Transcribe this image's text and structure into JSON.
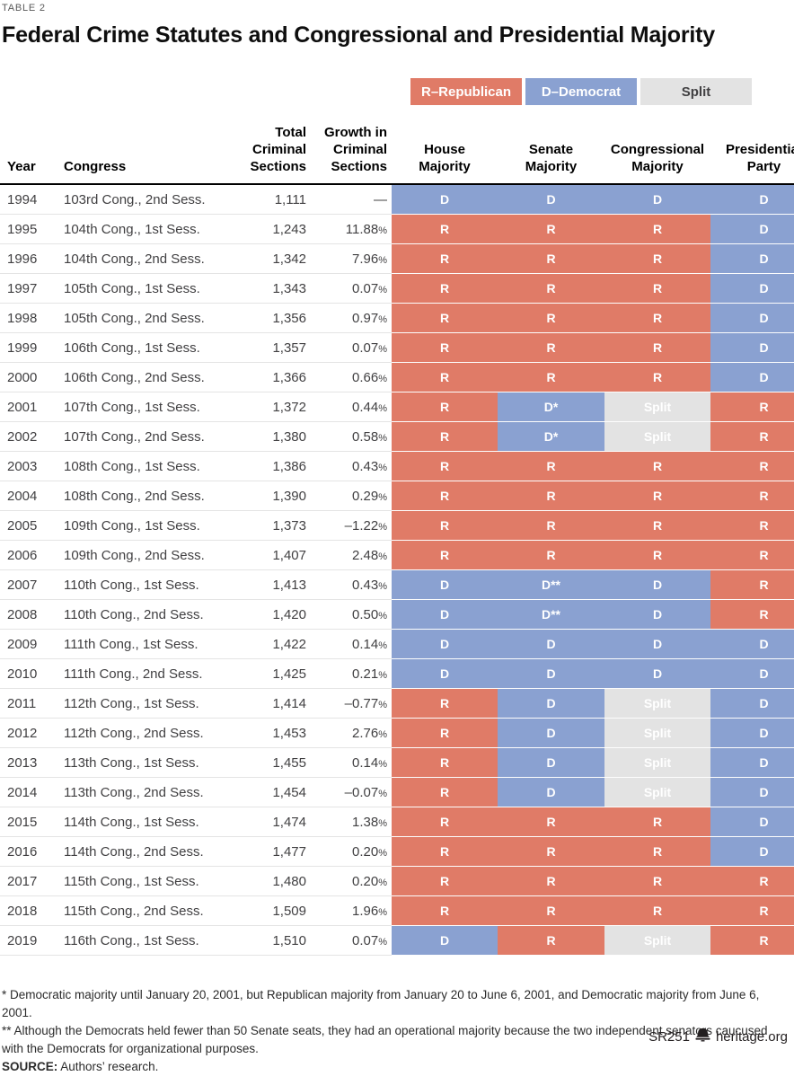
{
  "meta": {
    "table_label": "TABLE 2",
    "title": "Federal Crime Statutes and Congressional and Presidential Majority"
  },
  "legend": {
    "items": [
      {
        "label": "R–Republican",
        "color": "#E07B67",
        "text_color": "#FFFFFF"
      },
      {
        "label": "D–Democrat",
        "color": "#8AA1D1",
        "text_color": "#FFFFFF"
      },
      {
        "label": "Split",
        "color": "#E3E3E3",
        "text_color": "#414042"
      }
    ]
  },
  "table": {
    "columns": [
      {
        "key": "year",
        "label": "Year"
      },
      {
        "key": "congress",
        "label": "Congress"
      },
      {
        "key": "total",
        "label": "Total\nCriminal\nSections"
      },
      {
        "key": "growth",
        "label": "Growth in\nCriminal\nSections"
      },
      {
        "key": "house",
        "label": "House\nMajority"
      },
      {
        "key": "senate",
        "label": "Senate\nMajority"
      },
      {
        "key": "congressional",
        "label": "Congressional\nMajority"
      },
      {
        "key": "president",
        "label": "Presidential\nParty"
      }
    ],
    "rows": [
      {
        "year": "1994",
        "congress": "103rd Cong., 2nd Sess.",
        "total": "1,111",
        "growth": "—",
        "house": "D",
        "senate": "D",
        "congressional": "D",
        "president": "D"
      },
      {
        "year": "1995",
        "congress": "104th Cong., 1st Sess.",
        "total": "1,243",
        "growth": "11.88%",
        "house": "R",
        "senate": "R",
        "congressional": "R",
        "president": "D"
      },
      {
        "year": "1996",
        "congress": "104th Cong., 2nd Sess.",
        "total": "1,342",
        "growth": "7.96%",
        "house": "R",
        "senate": "R",
        "congressional": "R",
        "president": "D"
      },
      {
        "year": "1997",
        "congress": "105th Cong., 1st Sess.",
        "total": "1,343",
        "growth": "0.07%",
        "house": "R",
        "senate": "R",
        "congressional": "R",
        "president": "D"
      },
      {
        "year": "1998",
        "congress": "105th Cong., 2nd Sess.",
        "total": "1,356",
        "growth": "0.97%",
        "house": "R",
        "senate": "R",
        "congressional": "R",
        "president": "D"
      },
      {
        "year": "1999",
        "congress": "106th Cong., 1st Sess.",
        "total": "1,357",
        "growth": "0.07%",
        "house": "R",
        "senate": "R",
        "congressional": "R",
        "president": "D"
      },
      {
        "year": "2000",
        "congress": "106th Cong., 2nd Sess.",
        "total": "1,366",
        "growth": "0.66%",
        "house": "R",
        "senate": "R",
        "congressional": "R",
        "president": "D"
      },
      {
        "year": "2001",
        "congress": "107th Cong., 1st Sess.",
        "total": "1,372",
        "growth": "0.44%",
        "house": "R",
        "senate": "D*",
        "congressional": "Split",
        "president": "R"
      },
      {
        "year": "2002",
        "congress": "107th Cong., 2nd Sess.",
        "total": "1,380",
        "growth": "0.58%",
        "house": "R",
        "senate": "D*",
        "congressional": "Split",
        "president": "R"
      },
      {
        "year": "2003",
        "congress": "108th Cong., 1st Sess.",
        "total": "1,386",
        "growth": "0.43%",
        "house": "R",
        "senate": "R",
        "congressional": "R",
        "president": "R"
      },
      {
        "year": "2004",
        "congress": "108th Cong., 2nd Sess.",
        "total": "1,390",
        "growth": "0.29%",
        "house": "R",
        "senate": "R",
        "congressional": "R",
        "president": "R"
      },
      {
        "year": "2005",
        "congress": "109th Cong., 1st Sess.",
        "total": "1,373",
        "growth": "–1.22%",
        "house": "R",
        "senate": "R",
        "congressional": "R",
        "president": "R"
      },
      {
        "year": "2006",
        "congress": "109th Cong., 2nd Sess.",
        "total": "1,407",
        "growth": "2.48%",
        "house": "R",
        "senate": "R",
        "congressional": "R",
        "president": "R"
      },
      {
        "year": "2007",
        "congress": "110th Cong., 1st Sess.",
        "total": "1,413",
        "growth": "0.43%",
        "house": "D",
        "senate": "D**",
        "congressional": "D",
        "president": "R"
      },
      {
        "year": "2008",
        "congress": "110th Cong., 2nd Sess.",
        "total": "1,420",
        "growth": "0.50%",
        "house": "D",
        "senate": "D**",
        "congressional": "D",
        "president": "R"
      },
      {
        "year": "2009",
        "congress": "111th Cong., 1st Sess.",
        "total": "1,422",
        "growth": "0.14%",
        "house": "D",
        "senate": "D",
        "congressional": "D",
        "president": "D"
      },
      {
        "year": "2010",
        "congress": "111th Cong., 2nd Sess.",
        "total": "1,425",
        "growth": "0.21%",
        "house": "D",
        "senate": "D",
        "congressional": "D",
        "president": "D"
      },
      {
        "year": "2011",
        "congress": "112th Cong., 1st Sess.",
        "total": "1,414",
        "growth": "–0.77%",
        "house": "R",
        "senate": "D",
        "congressional": "Split",
        "president": "D"
      },
      {
        "year": "2012",
        "congress": "112th Cong., 2nd Sess.",
        "total": "1,453",
        "growth": "2.76%",
        "house": "R",
        "senate": "D",
        "congressional": "Split",
        "president": "D"
      },
      {
        "year": "2013",
        "congress": "113th Cong., 1st Sess.",
        "total": "1,455",
        "growth": "0.14%",
        "house": "R",
        "senate": "D",
        "congressional": "Split",
        "president": "D"
      },
      {
        "year": "2014",
        "congress": "113th Cong., 2nd Sess.",
        "total": "1,454",
        "growth": "–0.07%",
        "house": "R",
        "senate": "D",
        "congressional": "Split",
        "president": "D"
      },
      {
        "year": "2015",
        "congress": "114th Cong., 1st Sess.",
        "total": "1,474",
        "growth": "1.38%",
        "house": "R",
        "senate": "R",
        "congressional": "R",
        "president": "D"
      },
      {
        "year": "2016",
        "congress": "114th Cong., 2nd Sess.",
        "total": "1,477",
        "growth": "0.20%",
        "house": "R",
        "senate": "R",
        "congressional": "R",
        "president": "D"
      },
      {
        "year": "2017",
        "congress": "115th Cong., 1st Sess.",
        "total": "1,480",
        "growth": "0.20%",
        "house": "R",
        "senate": "R",
        "congressional": "R",
        "president": "R"
      },
      {
        "year": "2018",
        "congress": "115th Cong., 2nd Sess.",
        "total": "1,509",
        "growth": "1.96%",
        "house": "R",
        "senate": "R",
        "congressional": "R",
        "president": "R"
      },
      {
        "year": "2019",
        "congress": "116th Cong., 1st Sess.",
        "total": "1,510",
        "growth": "0.07%",
        "house": "D",
        "senate": "R",
        "congressional": "Split",
        "president": "R"
      }
    ]
  },
  "footnotes": [
    "* Democratic majority until January 20, 2001, but Republican majority from January 20 to June 6, 2001, and Democratic majority from June 6, 2001.",
    "** Although the Democrats held fewer than 50 Senate seats, they had an operational majority because the two independent senators caucused with the Democrats for organizational purposes."
  ],
  "source": {
    "label": "SOURCE:",
    "text": "Authors’ research."
  },
  "footer": {
    "report_id": "SR251",
    "site": "heritage.org"
  }
}
